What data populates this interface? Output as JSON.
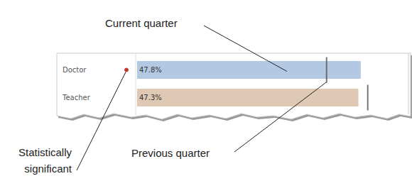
{
  "chart_data": {
    "type": "bar",
    "orientation": "horizontal",
    "categories": [
      "Doctor",
      "Teacher"
    ],
    "values": [
      47.8,
      47.3
    ],
    "value_labels": [
      "47.8%",
      "47.3%"
    ],
    "colors": [
      "#b3c9e3",
      "#dfc8b4"
    ],
    "previous": [
      40.5,
      49.3
    ],
    "significant": [
      true,
      false
    ],
    "xlim": [
      0,
      58
    ],
    "tick_labels": "y",
    "grid": false,
    "data_labels": true,
    "annotations": {
      "values": "Current quarter",
      "previous": "Previous quarter",
      "significant": "Statistically\nsignificant"
    }
  }
}
